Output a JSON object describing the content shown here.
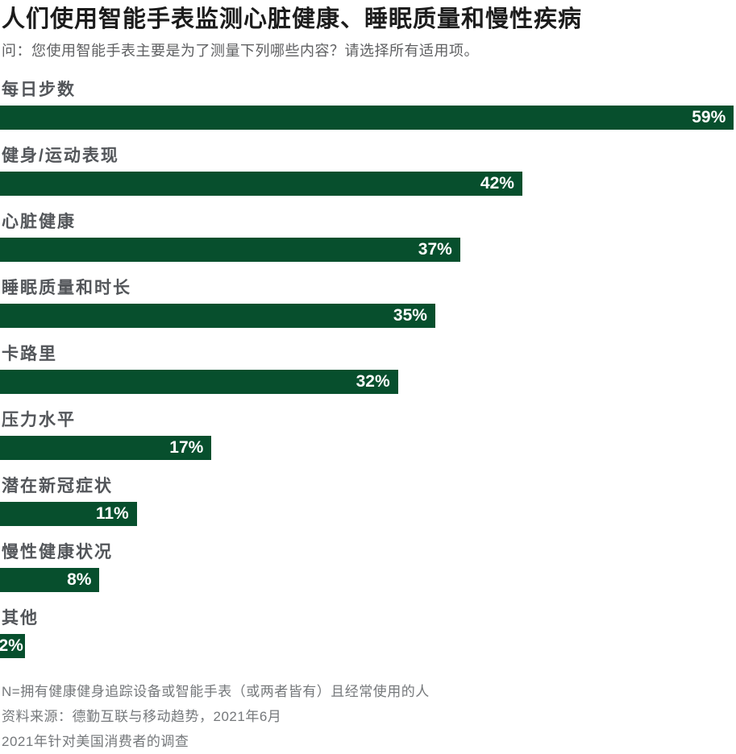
{
  "chart_data": {
    "type": "bar",
    "orientation": "horizontal",
    "title": "人们使用智能手表监测心脏健康、睡眠质量和慢性疾病",
    "subtitle": "问：您使用智能手表主要是为了测量下列哪些内容？请选择所有适用项。",
    "categories": [
      "每日步数",
      "健身/运动表现",
      "心脏健康",
      "睡眠质量和时长",
      "卡路里",
      "压力水平",
      "潜在新冠症状",
      "慢性健康状况",
      "其他"
    ],
    "values": [
      59,
      42,
      37,
      35,
      32,
      17,
      11,
      8,
      2
    ],
    "value_labels": [
      "59%",
      "42%",
      "37%",
      "35%",
      "32%",
      "17%",
      "11%",
      "8%",
      "2%"
    ],
    "xlim": [
      0,
      60
    ],
    "grid": false,
    "axis_shown": false,
    "legend": "none",
    "bar_color": "#074F2D",
    "value_label_color": "#FFFFFF"
  },
  "footer": {
    "note_n": "N=拥有健康健身追踪设备或智能手表（或两者皆有）且经常使用的人",
    "source": "资料来源：德勤互联与移动趋势，2021年6月",
    "survey": "2021年针对美国消费者的调查"
  },
  "colors": {
    "background": "#FFFFFF",
    "title": "#1C1C1C",
    "subtitle": "#5F6062",
    "category_label": "#53565A",
    "bar": "#074F2D",
    "value_text": "#FFFFFF",
    "footer_text": "#75787B"
  }
}
